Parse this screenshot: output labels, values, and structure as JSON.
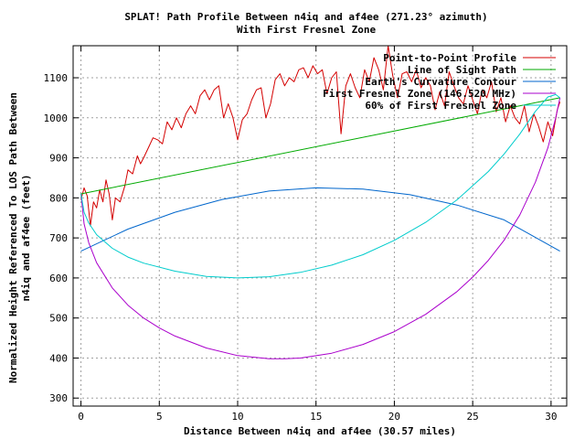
{
  "chart_data": {
    "type": "line",
    "title": "SPLAT! Path Profile Between n4iq and af4ee (271.23° azimuth)",
    "subtitle": "With First Fresnel Zone",
    "xlabel": "Distance Between n4iq and af4ee (30.57 miles)",
    "ylabel_line1": "Normalized Height Referenced To LOS Path Between",
    "ylabel_line2": "n4iq and af4ee (feet)",
    "xlim": [
      -0.5,
      31
    ],
    "ylim": [
      280,
      1180
    ],
    "xticks": [
      0,
      5,
      10,
      15,
      20,
      25,
      30
    ],
    "yticks": [
      300,
      400,
      500,
      600,
      700,
      800,
      900,
      1000,
      1100
    ],
    "grid": true,
    "legend_position": "top-right",
    "series": [
      {
        "name": "Point-to-Point Profile",
        "color": "#d40000",
        "x": [
          0,
          0.2,
          0.4,
          0.6,
          0.8,
          1.0,
          1.2,
          1.4,
          1.6,
          1.8,
          2.0,
          2.2,
          2.5,
          2.8,
          3.0,
          3.3,
          3.6,
          3.8,
          4.0,
          4.3,
          4.6,
          4.9,
          5.2,
          5.5,
          5.8,
          6.1,
          6.4,
          6.7,
          7.0,
          7.3,
          7.6,
          7.9,
          8.2,
          8.5,
          8.8,
          9.1,
          9.4,
          9.7,
          10.0,
          10.3,
          10.6,
          10.9,
          11.2,
          11.5,
          11.8,
          12.1,
          12.4,
          12.7,
          13.0,
          13.3,
          13.6,
          13.9,
          14.2,
          14.5,
          14.8,
          15.1,
          15.4,
          15.7,
          16.0,
          16.3,
          16.6,
          16.9,
          17.2,
          17.5,
          17.8,
          18.1,
          18.4,
          18.7,
          19.0,
          19.3,
          19.6,
          19.9,
          20.2,
          20.5,
          20.8,
          21.1,
          21.4,
          21.7,
          22.0,
          22.3,
          22.6,
          22.9,
          23.2,
          23.5,
          23.8,
          24.1,
          24.4,
          24.7,
          25.0,
          25.3,
          25.6,
          25.9,
          26.2,
          26.5,
          26.8,
          27.1,
          27.4,
          27.7,
          28.0,
          28.3,
          28.6,
          28.9,
          29.2,
          29.5,
          29.8,
          30.1,
          30.4,
          30.57
        ],
        "y": [
          795,
          825,
          805,
          730,
          790,
          775,
          820,
          790,
          845,
          810,
          745,
          800,
          790,
          830,
          870,
          860,
          905,
          885,
          900,
          925,
          950,
          945,
          935,
          990,
          970,
          1000,
          975,
          1010,
          1030,
          1010,
          1055,
          1070,
          1045,
          1070,
          1080,
          1000,
          1035,
          1000,
          945,
          995,
          1010,
          1045,
          1070,
          1075,
          1000,
          1035,
          1095,
          1110,
          1080,
          1100,
          1090,
          1120,
          1125,
          1100,
          1130,
          1110,
          1120,
          1060,
          1100,
          1115,
          960,
          1080,
          1110,
          1075,
          1050,
          1120,
          1090,
          1150,
          1120,
          1070,
          1180,
          1105,
          1050,
          1110,
          1115,
          1090,
          1120,
          1075,
          1100,
          1080,
          1020,
          1065,
          1030,
          1115,
          1080,
          1050,
          1035,
          1080,
          1045,
          1010,
          1070,
          1050,
          1090,
          1015,
          1050,
          990,
          1030,
          1000,
          985,
          1030,
          965,
          1010,
          980,
          940,
          990,
          955,
          1020,
          1040
        ]
      },
      {
        "name": "Line of Sight Path",
        "color": "#00aa00",
        "x": [
          0,
          30.57
        ],
        "y": [
          810,
          1050
        ]
      },
      {
        "name": "Earth's Curvature Contour",
        "color": "#0066cc",
        "x": [
          0,
          3,
          6,
          9,
          12,
          15,
          18,
          21,
          24,
          27,
          30.57
        ],
        "y": [
          667,
          722,
          764,
          796,
          817,
          825,
          822,
          808,
          782,
          745,
          667
        ]
      },
      {
        "name": "First Fresnel Zone (146.520 MHz)",
        "color": "#aa00cc",
        "x": [
          0,
          0.2,
          0.5,
          1,
          2,
          3,
          4,
          5,
          6,
          8,
          10,
          12,
          13,
          14,
          16,
          18,
          20,
          22,
          24,
          25,
          26,
          27,
          28,
          29,
          29.8,
          30.3,
          30.57
        ],
        "y": [
          810,
          735,
          688,
          638,
          575,
          532,
          500,
          475,
          455,
          425,
          406,
          398,
          398,
          400,
          412,
          434,
          466,
          509,
          566,
          602,
          644,
          694,
          757,
          839,
          925,
          1000,
          1050
        ]
      },
      {
        "name": "60% of First Fresnel Zone",
        "color": "#00cccc",
        "x": [
          0,
          0.2,
          0.5,
          1,
          2,
          3,
          4,
          6,
          8,
          10,
          12,
          14,
          16,
          18,
          20,
          22,
          24,
          26,
          27,
          28,
          29,
          29.8,
          30.3,
          30.57
        ],
        "y": [
          810,
          764,
          737,
          708,
          674,
          652,
          637,
          617,
          604,
          600,
          603,
          614,
          632,
          658,
          694,
          739,
          795,
          866,
          909,
          959,
          1016,
          1052,
          1058,
          1050
        ]
      }
    ]
  }
}
